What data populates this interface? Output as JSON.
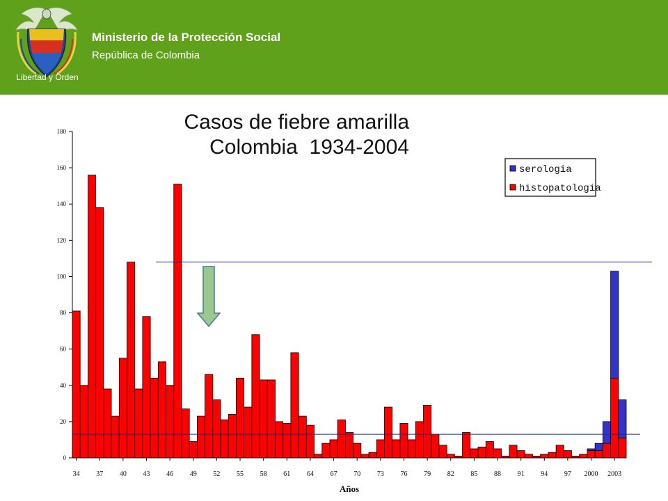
{
  "header": {
    "ministry": "Ministerio de la Protección Social",
    "country": "República de Colombia",
    "motto": "Libertad y Orden",
    "background_color": "#5fa11a"
  },
  "chart_data": {
    "type": "bar",
    "stacked": true,
    "title_lines": [
      "Casos de fiebre amarilla",
      "Colombia  1934-2004"
    ],
    "xlabel": "Años",
    "ylabel": "",
    "ylim": [
      0,
      180
    ],
    "yticks": [
      0,
      20,
      40,
      60,
      80,
      100,
      120,
      140,
      160,
      180
    ],
    "categories": [
      1934,
      1935,
      1936,
      1937,
      1938,
      1939,
      1940,
      1941,
      1942,
      1943,
      1944,
      1945,
      1946,
      1947,
      1948,
      1949,
      1950,
      1951,
      1952,
      1953,
      1954,
      1955,
      1956,
      1957,
      1958,
      1959,
      1960,
      1961,
      1962,
      1963,
      1964,
      1965,
      1966,
      1967,
      1968,
      1969,
      1970,
      1971,
      1972,
      1973,
      1974,
      1975,
      1976,
      1977,
      1978,
      1979,
      1980,
      1981,
      1982,
      1983,
      1984,
      1985,
      1986,
      1987,
      1988,
      1989,
      1990,
      1991,
      1992,
      1993,
      1994,
      1995,
      1996,
      1997,
      1998,
      1999,
      2000,
      2001,
      2002,
      2003,
      2004
    ],
    "tick_labels": [
      "34",
      "37",
      "40",
      "43",
      "46",
      "49",
      "52",
      "55",
      "58",
      "61",
      "64",
      "67",
      "70",
      "73",
      "76",
      "79",
      "82",
      "85",
      "88",
      "91",
      "94",
      "97",
      "2000",
      "2003"
    ],
    "tick_label_indices": [
      0,
      3,
      6,
      9,
      12,
      15,
      18,
      21,
      24,
      27,
      30,
      33,
      36,
      39,
      42,
      45,
      48,
      51,
      54,
      57,
      60,
      63,
      66,
      69
    ],
    "series": [
      {
        "name": "histopatologia",
        "color": "#ff0000",
        "values": [
          81,
          40,
          156,
          138,
          38,
          23,
          55,
          108,
          38,
          78,
          44,
          53,
          40,
          151,
          27,
          9,
          23,
          46,
          32,
          21,
          24,
          44,
          28,
          68,
          43,
          43,
          20,
          19,
          58,
          23,
          18,
          2,
          8,
          10,
          21,
          14,
          8,
          2,
          3,
          10,
          28,
          10,
          19,
          10,
          20,
          29,
          13,
          7,
          2,
          1,
          14,
          5,
          6,
          9,
          5,
          1,
          7,
          4,
          2,
          1,
          2,
          3,
          7,
          4,
          1,
          2,
          4,
          4,
          8,
          44,
          11
        ]
      },
      {
        "name": "serologia",
        "color": "#3333cc",
        "values": [
          0,
          0,
          0,
          0,
          0,
          0,
          0,
          0,
          0,
          0,
          0,
          0,
          0,
          0,
          0,
          0,
          0,
          0,
          0,
          0,
          0,
          0,
          0,
          0,
          0,
          0,
          0,
          0,
          0,
          0,
          0,
          0,
          0,
          0,
          0,
          0,
          0,
          0,
          0,
          0,
          0,
          0,
          0,
          0,
          0,
          0,
          0,
          0,
          0,
          0,
          0,
          0,
          0,
          0,
          0,
          0,
          0,
          0,
          0,
          0,
          0,
          0,
          0,
          0,
          0,
          0,
          1,
          4,
          12,
          59,
          21
        ]
      }
    ],
    "reference_lines": [
      108,
      13
    ],
    "annotation": "downward-arrow",
    "legend_position": "top-right",
    "grid": false
  }
}
